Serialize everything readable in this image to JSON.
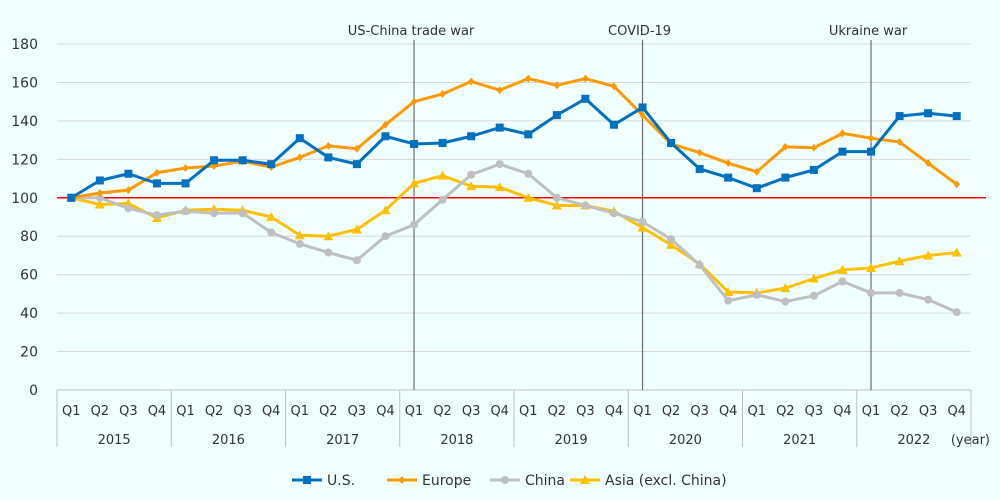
{
  "chart_data": {
    "type": "line",
    "title": "",
    "xlabel": "",
    "ylabel": "",
    "ylim": [
      0,
      180
    ],
    "yticks": [
      0,
      20,
      40,
      60,
      80,
      100,
      120,
      140,
      160,
      180
    ],
    "reference_line": {
      "value": 100,
      "color": "#ff0000"
    },
    "year_unit_label": "(year)",
    "years": [
      "2015",
      "2016",
      "2017",
      "2018",
      "2019",
      "2020",
      "2021",
      "2022"
    ],
    "quarters": [
      "Q1",
      "Q2",
      "Q3",
      "Q4"
    ],
    "events": [
      {
        "label": "US-China trade war",
        "year": "2018",
        "quarter": "Q1"
      },
      {
        "label": "COVID-19",
        "year": "2020",
        "quarter": "Q1"
      },
      {
        "label": "Ukraine war",
        "year": "2022",
        "quarter": "Q1"
      }
    ],
    "grid": true,
    "legend_position": "bottom",
    "series": [
      {
        "name": "U.S.",
        "color": "#0070c0",
        "marker": "square",
        "values": [
          100,
          109,
          112.5,
          107.5,
          107.5,
          119.5,
          119.5,
          117.5,
          131,
          121,
          117.5,
          132,
          128,
          128.5,
          132,
          136.5,
          133,
          143,
          151.5,
          138,
          147,
          128.5,
          115,
          110.5,
          105,
          110.5,
          114.5,
          124,
          124,
          142.5,
          144,
          142.5
        ]
      },
      {
        "name": "Europe",
        "color": "#ff9900",
        "marker": "diamond",
        "values": [
          100,
          102.5,
          104,
          113,
          115.5,
          116.5,
          119,
          116,
          121,
          127,
          125.5,
          138,
          150,
          154,
          160.5,
          156,
          162,
          158.5,
          162,
          158,
          143,
          128,
          123.5,
          118,
          113.5,
          126.5,
          126,
          133.5,
          131,
          129,
          118,
          107
        ]
      },
      {
        "name": "China",
        "color": "#bfbfbf",
        "marker": "circle",
        "values": [
          100,
          100,
          94.5,
          91,
          93,
          92,
          92,
          82,
          76,
          71.5,
          67.5,
          80,
          86,
          99,
          112,
          117.5,
          112.5,
          100,
          96,
          92,
          87.5,
          78.5,
          65,
          46.5,
          49.5,
          46,
          49,
          56.5,
          50.5,
          50.5,
          47,
          40.5
        ]
      },
      {
        "name": "Asia (excl. China)",
        "color": "#ffc000",
        "marker": "triangle",
        "values": [
          100,
          96.5,
          97,
          89.5,
          93.5,
          94,
          93.5,
          90,
          80.5,
          80,
          83.5,
          93.5,
          107.5,
          111.5,
          106,
          105.5,
          100,
          96,
          96,
          93,
          84.5,
          75.5,
          65.5,
          51,
          50.5,
          53,
          58,
          62.5,
          63.5,
          67,
          70,
          71.5
        ]
      }
    ]
  }
}
